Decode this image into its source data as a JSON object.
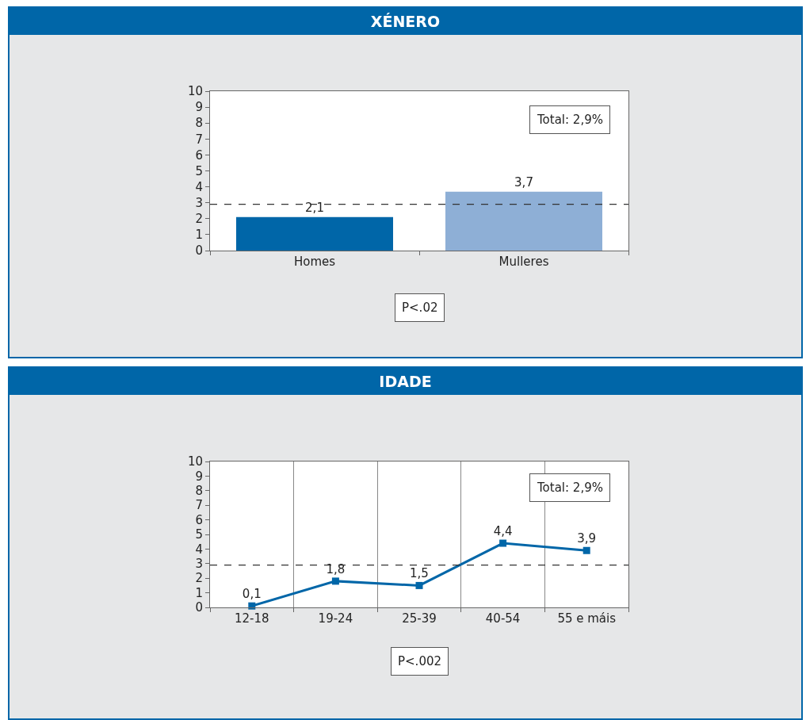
{
  "chart_data": [
    {
      "type": "bar",
      "title": "XÉNERO",
      "categories": [
        "Homes",
        "Mulleres"
      ],
      "values": [
        2.1,
        3.7
      ],
      "colors": [
        "#0066a8",
        "#8eafd6"
      ],
      "value_labels": [
        "2,1",
        "3,7"
      ],
      "ylim": [
        0,
        10
      ],
      "yticks": [
        0,
        1,
        2,
        3,
        4,
        5,
        6,
        7,
        8,
        9,
        10
      ],
      "grid": false,
      "legend": false,
      "ref_lines": [
        {
          "axis": "y",
          "value": 2.9,
          "color": "#333333",
          "line_style": "dashed"
        }
      ],
      "annotations": [
        "Total: 2,9%",
        "P<.02"
      ]
    },
    {
      "type": "line",
      "title": "IDADE",
      "categories": [
        "12-18",
        "19-24",
        "25-39",
        "40-54",
        "55 e máis"
      ],
      "series": [
        {
          "color": "#0066a8",
          "values": [
            0.1,
            1.8,
            1.5,
            4.4,
            3.9
          ]
        }
      ],
      "value_labels": [
        "0,1",
        "1,8",
        "1,5",
        "4,4",
        "3,9"
      ],
      "marker": "square",
      "line_style": "solid",
      "ylim": [
        0,
        10
      ],
      "yticks": [
        0,
        1,
        2,
        3,
        4,
        5,
        6,
        7,
        8,
        9,
        10
      ],
      "grid": "x",
      "legend": false,
      "ref_lines": [
        {
          "axis": "y",
          "value": 2.9,
          "color": "#333333",
          "line_style": "dashed"
        }
      ],
      "annotations": [
        "Total: 2,9%",
        "P<.002"
      ]
    }
  ]
}
